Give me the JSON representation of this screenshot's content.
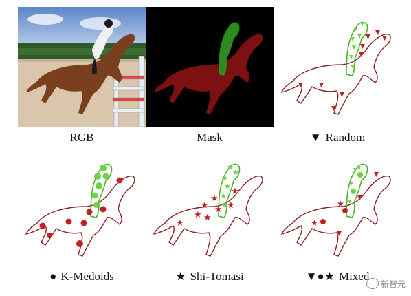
{
  "figure": {
    "panels": [
      {
        "key": "rgb",
        "caption": "RGB",
        "symbol": ""
      },
      {
        "key": "mask",
        "caption": "Mask",
        "symbol": ""
      },
      {
        "key": "random",
        "caption": "Random",
        "symbol": "▼"
      },
      {
        "key": "kmedoids",
        "caption": "K-Medoids",
        "symbol": "●"
      },
      {
        "key": "shitomasi",
        "caption": "Shi-Tomasi",
        "symbol": "★"
      },
      {
        "key": "mixed",
        "caption": "Mixed",
        "symbol": "▼●★"
      }
    ],
    "colors": {
      "horse_mask": "#7d1010",
      "rider_mask": "#2d8a1e",
      "horse_outline": "#8b2323",
      "rider_outline": "#4cb22b",
      "point_red": "#c21f1f",
      "point_green": "#6fd14a"
    }
  },
  "watermark": {
    "text": "新智元"
  }
}
